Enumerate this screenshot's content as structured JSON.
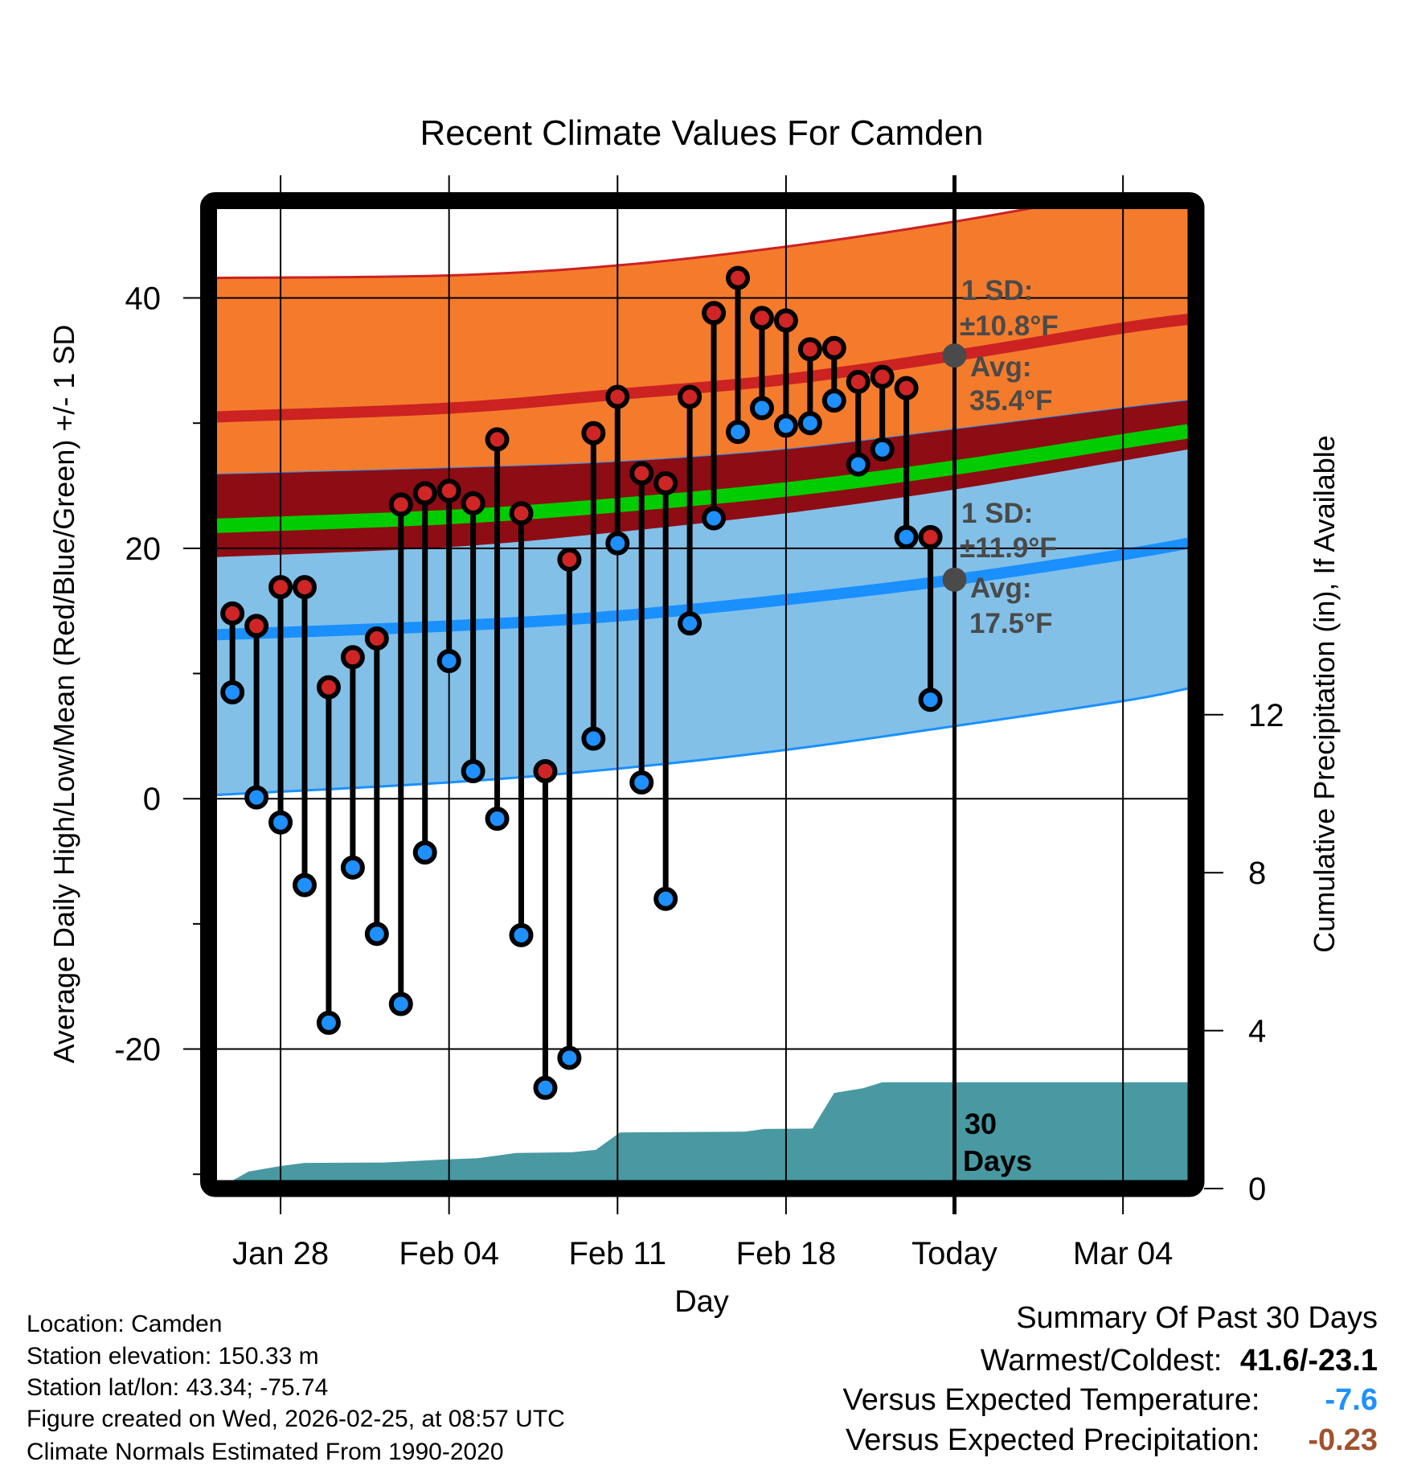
{
  "chart_data": {
    "type": "line",
    "title": "Recent Climate Values For Camden",
    "xlabel": "Day",
    "ylabel": "Average Daily High/Low/Mean (Red/Blue/Green) +/- 1 SD",
    "y2label": "Cumulative Precipitation (in), If Available",
    "x_unit": "days since Jan 28",
    "xlim": [
      -2.64,
      37.7
    ],
    "ylim": [
      -30.5,
      47.1
    ],
    "y2lim": [
      0,
      15.6
    ],
    "grid": true,
    "x_ticks": [
      {
        "value": 0,
        "label": "Jan 28"
      },
      {
        "value": 7,
        "label": "Feb 04"
      },
      {
        "value": 14,
        "label": "Feb 11"
      },
      {
        "value": 21,
        "label": "Feb 18"
      },
      {
        "value": 28,
        "label": "Today"
      },
      {
        "value": 35,
        "label": "Mar 04"
      }
    ],
    "y_ticks": [
      {
        "value": 40,
        "label": "40"
      },
      {
        "value": 20,
        "label": "20"
      },
      {
        "value": 0,
        "label": "0"
      },
      {
        "value": -20,
        "label": "-20"
      }
    ],
    "y_minor_ticks": [
      30,
      10,
      -10,
      -30
    ],
    "y2_ticks": [
      {
        "value": 0,
        "label": "0"
      },
      {
        "value": 4,
        "label": "4"
      },
      {
        "value": 8,
        "label": "8"
      },
      {
        "value": 12,
        "label": "12"
      }
    ],
    "today_x": 28,
    "daily": {
      "dates": [
        "Jan 26",
        "Jan 27",
        "Jan 28",
        "Jan 29",
        "Jan 30",
        "Jan 31",
        "Feb 01",
        "Feb 02",
        "Feb 03",
        "Feb 04",
        "Feb 05",
        "Feb 06",
        "Feb 07",
        "Feb 08",
        "Feb 09",
        "Feb 10",
        "Feb 11",
        "Feb 12",
        "Feb 13",
        "Feb 14",
        "Feb 15",
        "Feb 16",
        "Feb 17",
        "Feb 18",
        "Feb 19",
        "Feb 20",
        "Feb 21",
        "Feb 22",
        "Feb 23",
        "Feb 24"
      ],
      "x": [
        -2,
        -1,
        0,
        1,
        2,
        3,
        4,
        5,
        6,
        7,
        8,
        9,
        10,
        11,
        12,
        13,
        14,
        15,
        16,
        17,
        18,
        19,
        20,
        21,
        22,
        23,
        24,
        25,
        26,
        27
      ],
      "high": [
        14.8,
        13.8,
        16.9,
        16.9,
        8.9,
        11.3,
        12.8,
        23.5,
        24.4,
        24.6,
        23.6,
        28.7,
        22.8,
        2.2,
        19.1,
        29.2,
        32.1,
        26.0,
        25.2,
        32.1,
        38.8,
        41.6,
        38.4,
        38.2,
        35.9,
        36.0,
        33.3,
        33.7,
        32.8,
        20.9
      ],
      "low": [
        8.5,
        0.1,
        -1.9,
        -6.9,
        -17.9,
        -5.5,
        -10.8,
        -16.4,
        -4.3,
        11.0,
        2.2,
        -1.6,
        -10.9,
        -23.1,
        -20.7,
        4.8,
        20.4,
        1.3,
        -8.0,
        14.0,
        22.4,
        29.3,
        31.2,
        29.8,
        30.0,
        31.8,
        26.7,
        27.9,
        20.9,
        7.9
      ]
    },
    "normals": {
      "x": [
        -2.64,
        7,
        14,
        21,
        28,
        35,
        37.7
      ],
      "high_mean": [
        30.5,
        31.2,
        32.3,
        33.5,
        35.4,
        37.6,
        38.3
      ],
      "high_upper": [
        41.6,
        41.8,
        42.6,
        44.1,
        46.1,
        48.5,
        49.3
      ],
      "high_lower": [
        19.3,
        20.1,
        21.3,
        22.8,
        24.7,
        27.0,
        27.9
      ],
      "low_mean": [
        13.1,
        13.8,
        14.6,
        15.9,
        17.5,
        19.5,
        20.4
      ],
      "low_upper": [
        25.9,
        26.4,
        26.9,
        27.9,
        29.5,
        31.2,
        31.8
      ],
      "low_lower": [
        0.3,
        1.3,
        2.4,
        3.9,
        5.8,
        7.8,
        8.8
      ]
    },
    "precip_cumulative": {
      "x": [
        -2,
        -1.33,
        0,
        1,
        4.3,
        7,
        8.2,
        9.8,
        12.1,
        13.1,
        14.1,
        19.3,
        20.1,
        22.1,
        23.0,
        24.2,
        25.0,
        37.7
      ],
      "values": [
        0.2,
        0.43,
        0.57,
        0.65,
        0.66,
        0.74,
        0.77,
        0.9,
        0.92,
        0.98,
        1.42,
        1.44,
        1.51,
        1.52,
        2.42,
        2.54,
        2.69,
        2.69
      ]
    },
    "annotations": {
      "high_sd_label": "1 SD:",
      "high_sd_value": "±10.8°F",
      "high_avg_label": "Avg:",
      "high_avg_value": "35.4°F",
      "high_avg": 35.4,
      "low_sd_label": "1 SD:",
      "low_sd_value": "±11.9°F",
      "low_avg_label": "Avg:",
      "low_avg_value": "17.5°F",
      "low_avg": 17.5,
      "window_num": "30",
      "window_unit": "Days"
    },
    "colors": {
      "high_band": "#f47b2c",
      "high_line": "#cc2222",
      "overlap_band": "#8e0c14",
      "mean_line": "#00cc00",
      "low_band": "#82c0e8",
      "low_line": "#1a90ff",
      "precip": "#4899a2",
      "high_marker": "#d02525",
      "low_marker": "#1e90ff",
      "annotation": "#4a4a4a"
    }
  },
  "footer": {
    "location": "Location: Camden",
    "elevation": "Station elevation: 150.33 m",
    "latlon": "Station lat/lon: 43.34; -75.74",
    "created": "Figure created on Wed, 2026-02-25, at 08:57 UTC",
    "normals": "Climate Normals Estimated From 1990-2020"
  },
  "summary": {
    "title": "Summary Of Past 30 Days",
    "warmest_label": "Warmest/Coldest:",
    "warmest_value": "41.6/-23.1",
    "temp_label": "Versus Expected Temperature:",
    "temp_value": "-7.6",
    "temp_color": "#1e90ff",
    "precip_label": "Versus Expected Precipitation:",
    "precip_value": "-0.23",
    "precip_color": "#a0522d"
  }
}
